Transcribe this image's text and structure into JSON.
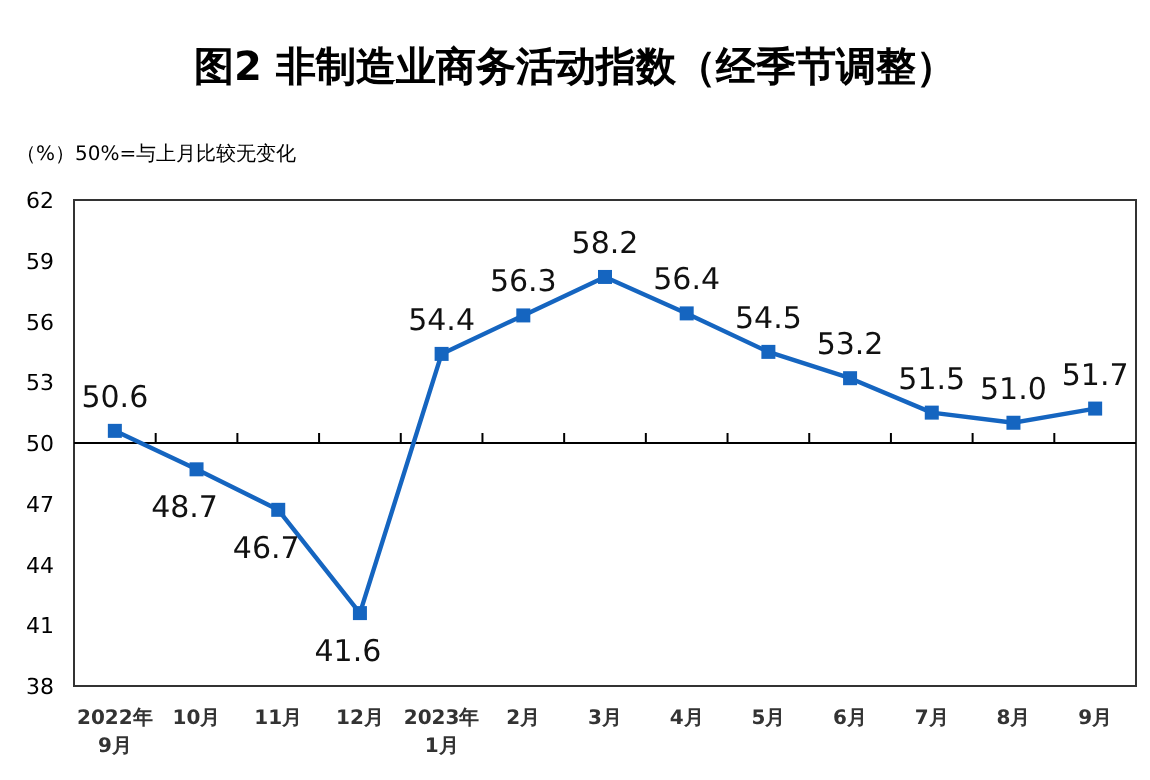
{
  "chart_data": {
    "type": "line",
    "title": "图2  非制造业商务活动指数（经季节调整）",
    "ylabel": "（%）",
    "annotations": [
      "50%=与上月比较无变化"
    ],
    "categories": [
      "2022年\n9月",
      "10月",
      "11月",
      "12月",
      "2023年\n1月",
      "2月",
      "3月",
      "4月",
      "5月",
      "6月",
      "7月",
      "8月",
      "9月"
    ],
    "series": [
      {
        "color": "#1565c0",
        "values": [
          50.6,
          48.7,
          46.7,
          41.6,
          54.4,
          56.3,
          58.2,
          56.4,
          54.5,
          53.2,
          51.5,
          51.0,
          51.7
        ],
        "value_labels": [
          "50.6",
          "48.7",
          "46.7",
          "41.6",
          "54.4",
          "56.3",
          "58.2",
          "56.4",
          "54.5",
          "53.2",
          "51.5",
          "51.0",
          "51.7"
        ]
      }
    ],
    "ylim": [
      38,
      62
    ],
    "yticks": [
      38,
      41,
      44,
      47,
      50,
      53,
      56,
      59,
      62
    ],
    "ref_lines": [
      {
        "axis": "y",
        "value": 50
      }
    ],
    "marker": "square",
    "grid": false
  }
}
